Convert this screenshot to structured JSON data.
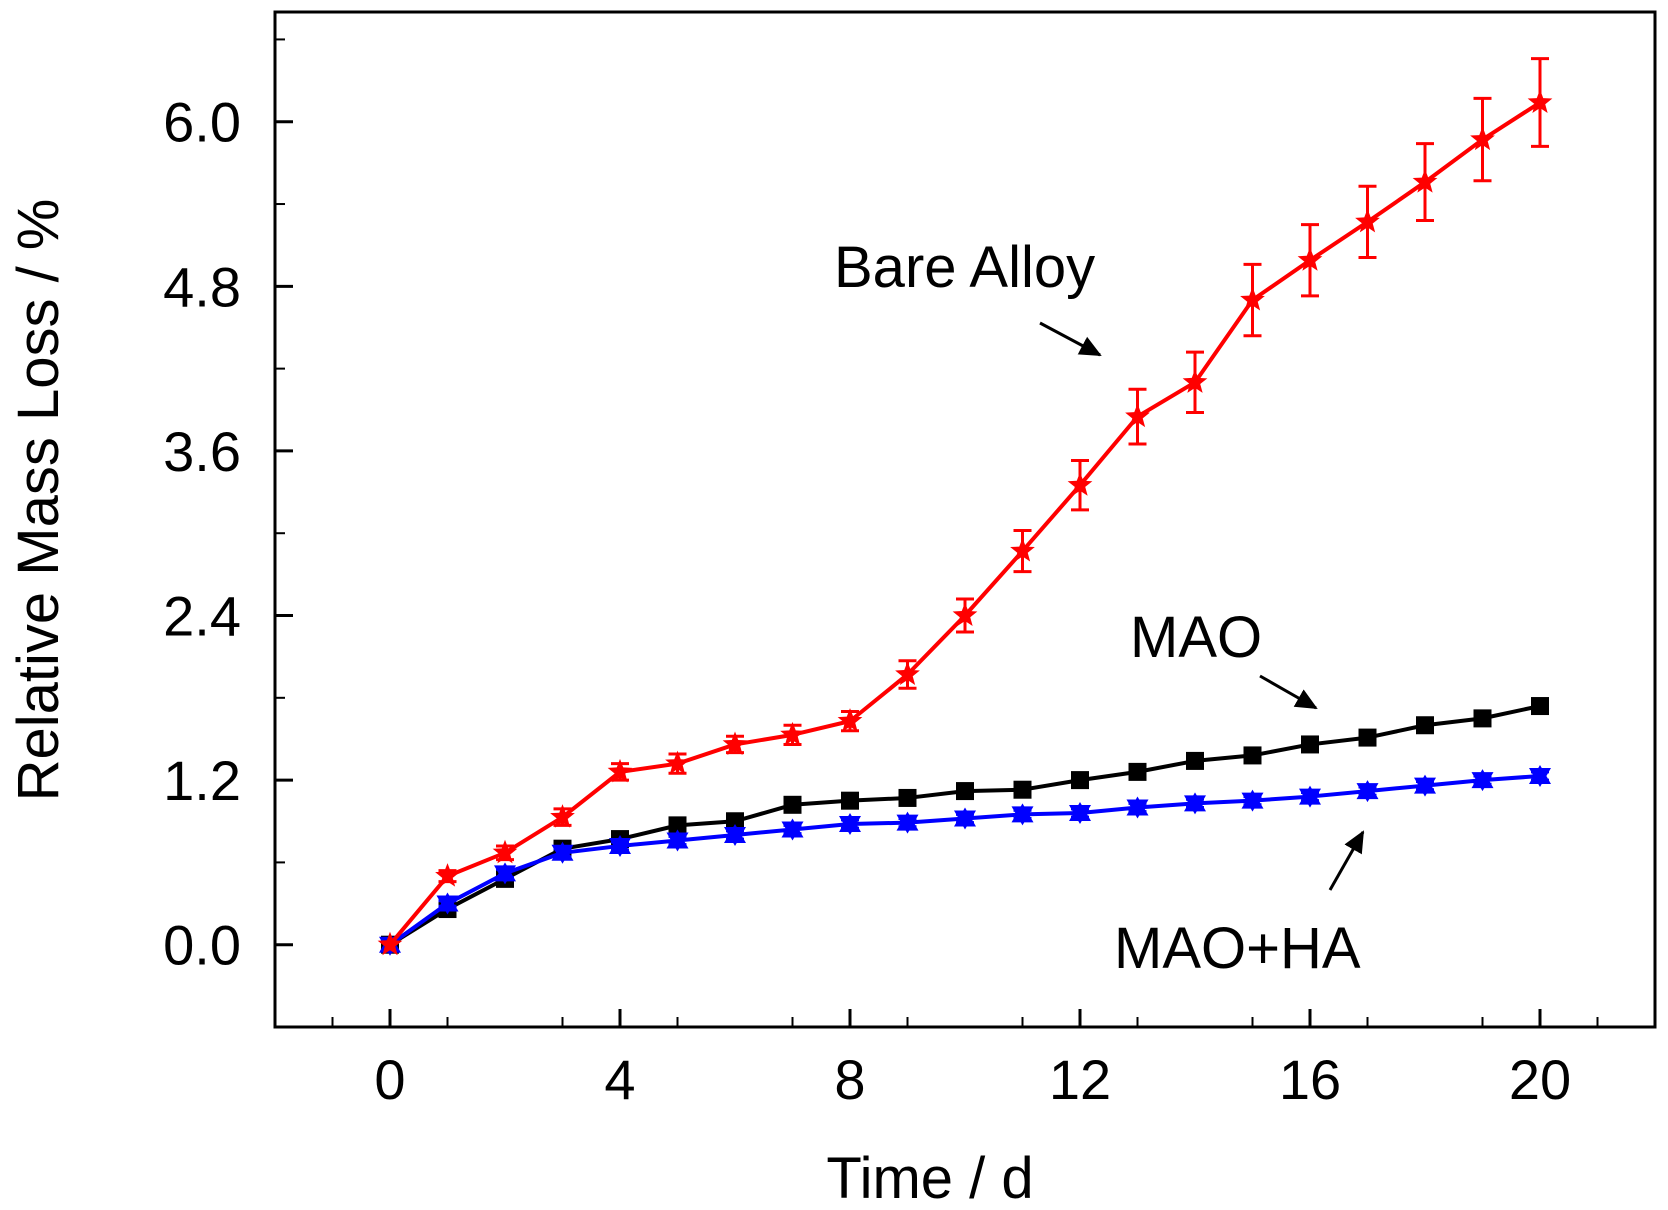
{
  "chart_data": {
    "type": "line",
    "title": "",
    "xlabel": "Time / d",
    "ylabel": "Relative Mass Loss / %",
    "xlim": [
      -2,
      22
    ],
    "ylim": [
      -0.6,
      6.8
    ],
    "xticks": [
      0,
      4,
      8,
      12,
      16,
      20
    ],
    "xtick_labels": [
      "0",
      "4",
      "8",
      "12",
      "16",
      "20"
    ],
    "yticks": [
      0.0,
      1.2,
      2.4,
      3.6,
      4.8,
      6.0
    ],
    "ytick_labels": [
      "0.0",
      "1.2",
      "2.4",
      "3.6",
      "4.8",
      "6.0"
    ],
    "grid": false,
    "legend": "none",
    "x": [
      0,
      1,
      2,
      3,
      4,
      5,
      6,
      7,
      8,
      9,
      10,
      11,
      12,
      13,
      14,
      15,
      16,
      17,
      18,
      19,
      20
    ],
    "series": [
      {
        "name": "Bare Alloy",
        "color": "#ff0000",
        "marker": "star",
        "values": [
          0.0,
          0.5,
          0.67,
          0.93,
          1.26,
          1.32,
          1.46,
          1.53,
          1.63,
          1.97,
          2.4,
          2.87,
          3.35,
          3.85,
          4.1,
          4.7,
          4.99,
          5.27,
          5.56,
          5.87,
          6.14
        ],
        "errors": [
          0.0,
          0.04,
          0.05,
          0.06,
          0.06,
          0.07,
          0.06,
          0.07,
          0.07,
          0.1,
          0.12,
          0.15,
          0.18,
          0.2,
          0.22,
          0.26,
          0.26,
          0.26,
          0.28,
          0.3,
          0.32
        ]
      },
      {
        "name": "MAO",
        "color": "#000000",
        "marker": "square",
        "values": [
          0.0,
          0.26,
          0.48,
          0.7,
          0.77,
          0.87,
          0.9,
          1.02,
          1.05,
          1.07,
          1.12,
          1.13,
          1.2,
          1.26,
          1.34,
          1.38,
          1.46,
          1.51,
          1.6,
          1.65,
          1.74
        ],
        "errors": [
          0,
          0,
          0,
          0,
          0,
          0,
          0,
          0,
          0,
          0,
          0,
          0,
          0,
          0,
          0,
          0,
          0,
          0,
          0,
          0,
          0
        ]
      },
      {
        "name": "MAO+HA",
        "color": "#0000ff",
        "marker": "triangle",
        "values": [
          0.0,
          0.3,
          0.52,
          0.67,
          0.72,
          0.76,
          0.8,
          0.84,
          0.88,
          0.89,
          0.92,
          0.95,
          0.96,
          1.0,
          1.03,
          1.05,
          1.08,
          1.12,
          1.16,
          1.2,
          1.23
        ],
        "errors": [
          0.0,
          0.02,
          0.03,
          0.03,
          0.03,
          0.03,
          0.03,
          0.03,
          0.03,
          0.03,
          0.03,
          0.03,
          0.03,
          0.03,
          0.03,
          0.03,
          0.03,
          0.03,
          0.03,
          0.03,
          0.03
        ]
      }
    ],
    "annotations": [
      {
        "text": "Bare Alloy",
        "series": "Bare Alloy"
      },
      {
        "text": "MAO",
        "series": "MAO"
      },
      {
        "text": "MAO+HA",
        "series": "MAO+HA"
      }
    ]
  }
}
